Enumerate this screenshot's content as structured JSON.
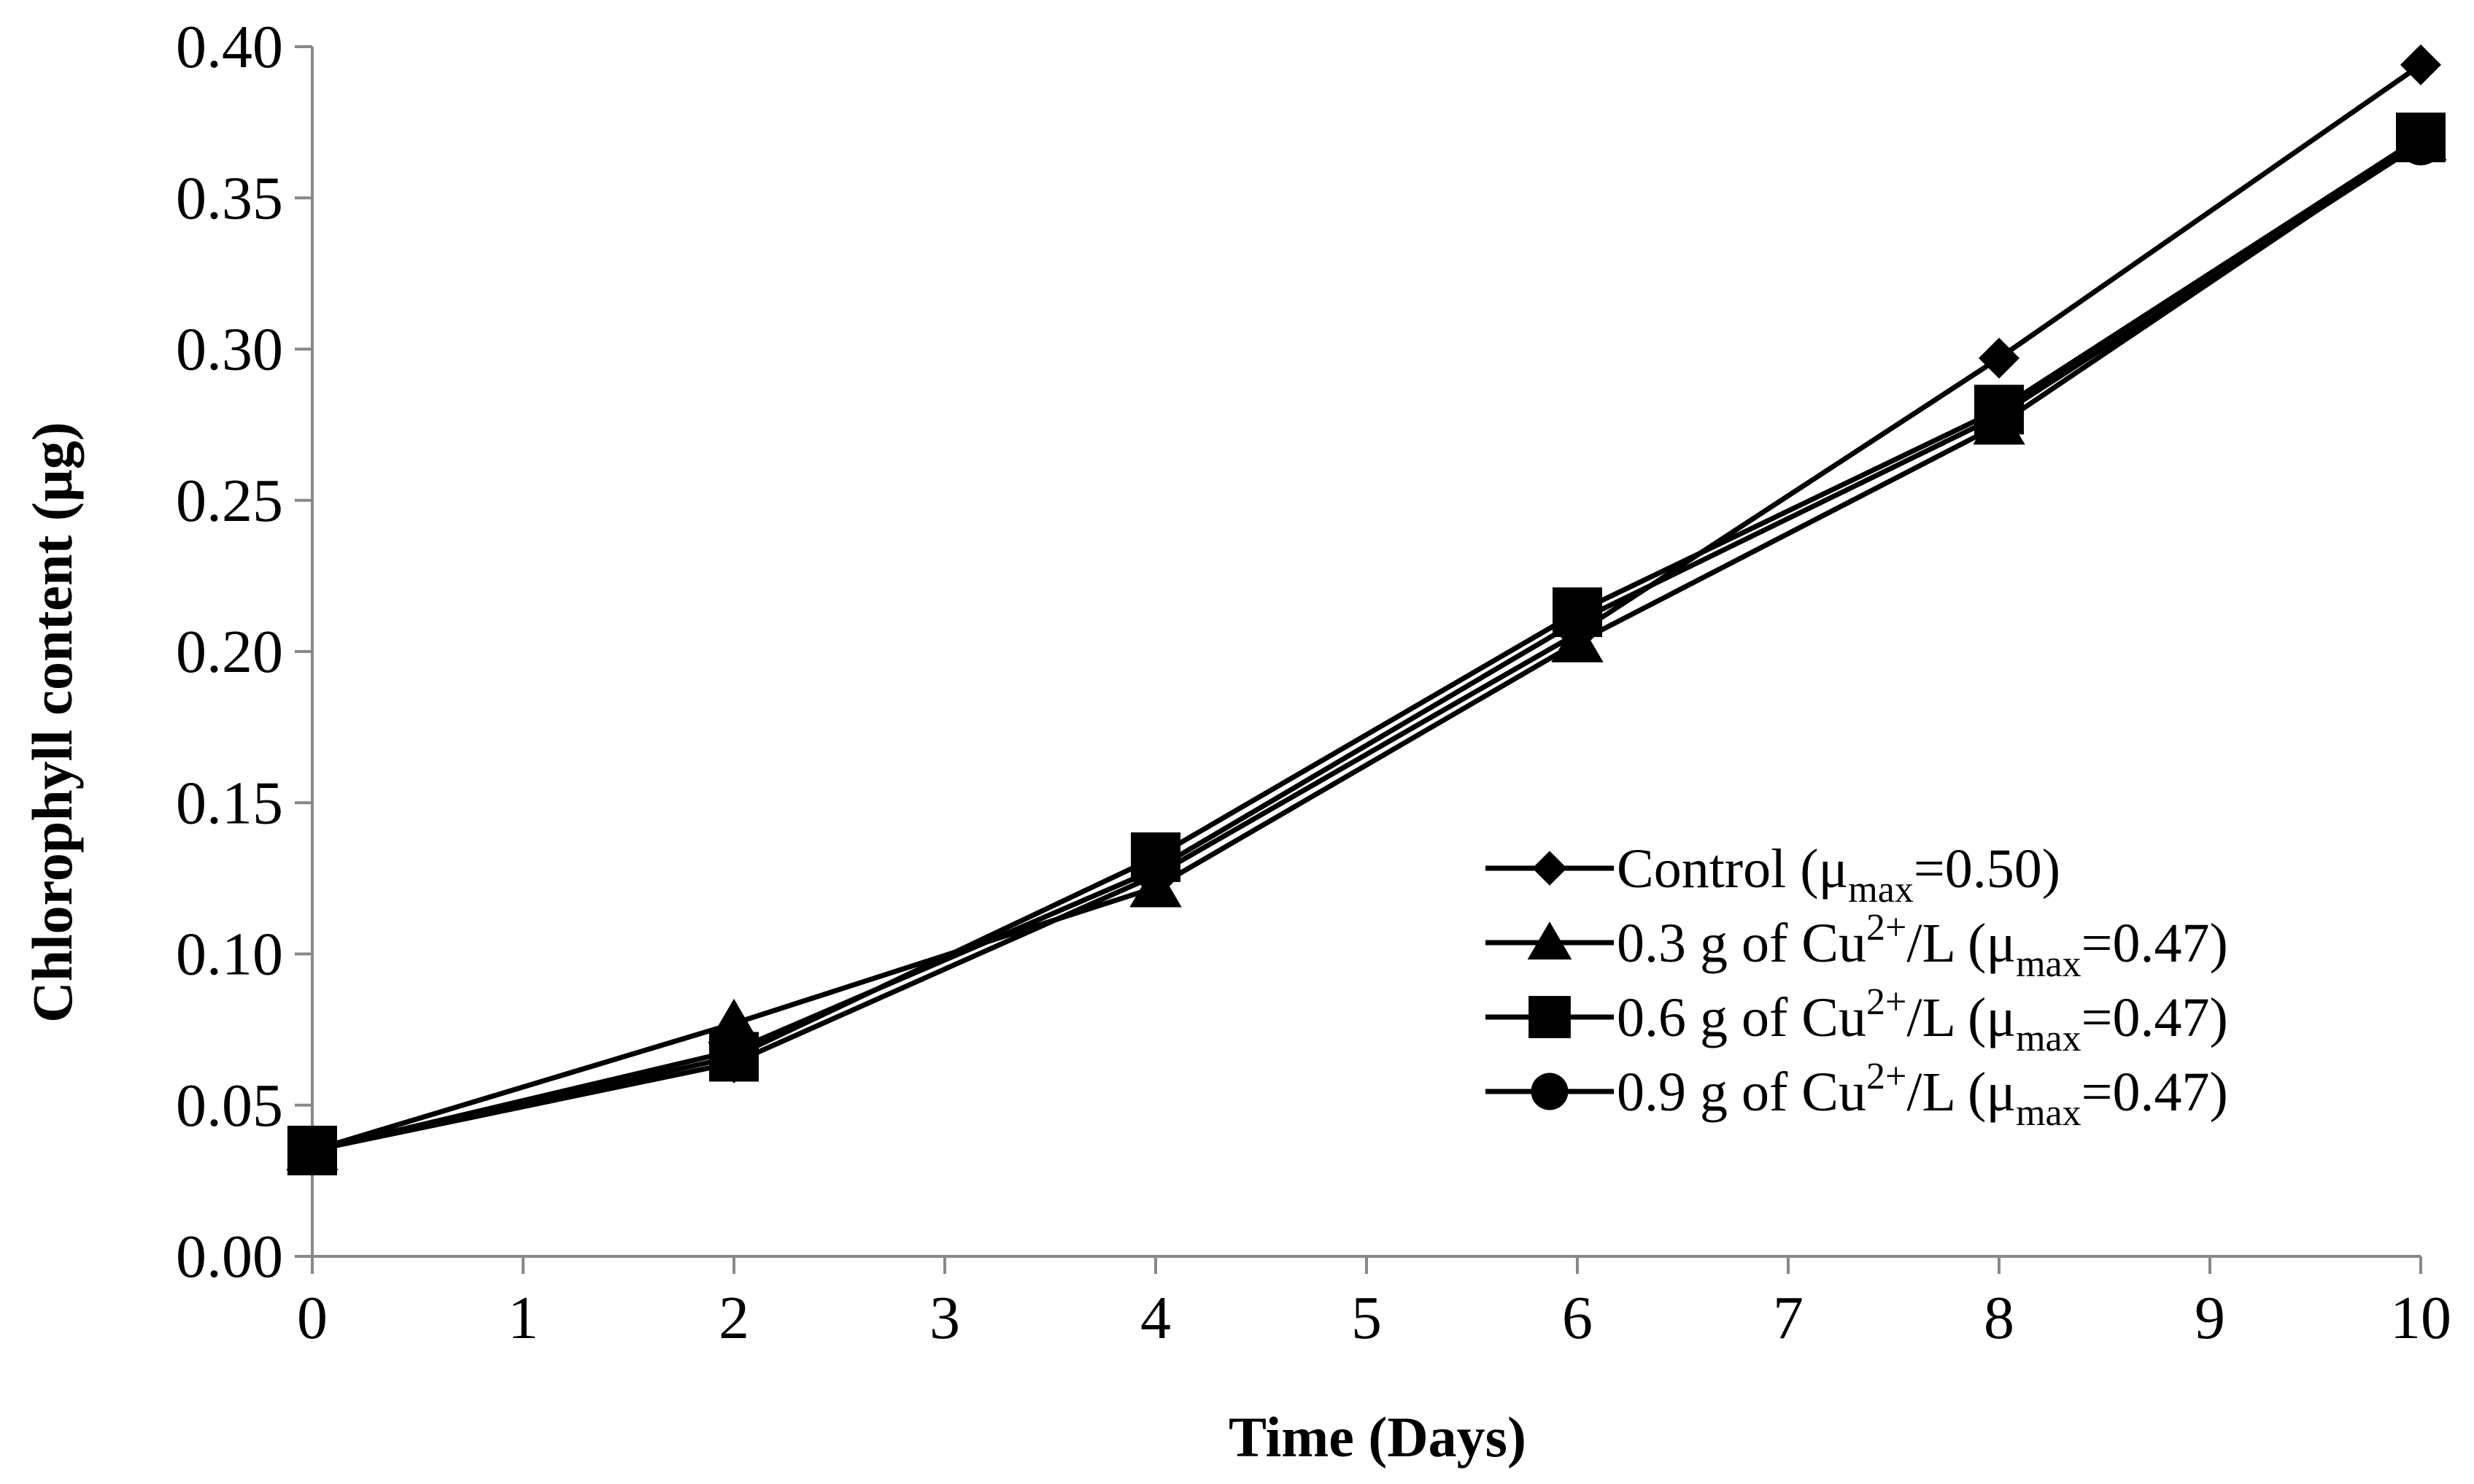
{
  "chart_data": {
    "type": "line",
    "title": "",
    "xlabel": "Time (Days)",
    "ylabel": "Chlorophyll content (µg)",
    "xlim": [
      0,
      10
    ],
    "ylim": [
      0,
      0.4
    ],
    "x_ticks": [
      "0",
      "1",
      "2",
      "3",
      "4",
      "5",
      "6",
      "7",
      "8",
      "9",
      "10"
    ],
    "y_ticks": [
      "0.00",
      "0.05",
      "0.10",
      "0.15",
      "0.20",
      "0.25",
      "0.30",
      "0.35",
      "0.40"
    ],
    "grid": false,
    "legend_position": "lower-right",
    "colors": {
      "line": "#000000",
      "axis": "#888888"
    },
    "x": [
      0,
      2,
      4,
      6,
      8,
      10
    ],
    "series": [
      {
        "name": "Control (μmax=0.50)",
        "label_main": "Control (μ",
        "label_sub": "max",
        "label_end": "=0.50)",
        "marker": "diamond",
        "values": [
          0.035,
          0.064,
          0.126,
          0.206,
          0.297,
          0.394
        ]
      },
      {
        "name": "0.3 g of Cu2+/L (μmax=0.47)",
        "label_main": "0.3 g of Cu",
        "label_sup": "2+",
        "label_mid": "/L (μ",
        "label_sub": "max",
        "label_end": "=0.47)",
        "marker": "triangle",
        "values": [
          0.035,
          0.077,
          0.122,
          0.203,
          0.275,
          0.369
        ]
      },
      {
        "name": "0.6 g of Cu2+/L (μmax=0.47)",
        "label_main": "0.6 g of Cu",
        "label_sup": "2+",
        "label_mid": "/L (μ",
        "label_sub": "max",
        "label_end": "=0.47)",
        "marker": "square",
        "values": [
          0.035,
          0.066,
          0.132,
          0.213,
          0.28,
          0.37
        ]
      },
      {
        "name": "0.9 g of Cu2+/L (μmax=0.47)",
        "label_main": "0.9 g of Cu",
        "label_sup": "2+",
        "label_mid": "/L (μ",
        "label_sub": "max",
        "label_end": "=0.47)",
        "marker": "circle",
        "values": [
          0.035,
          0.068,
          0.128,
          0.21,
          0.278,
          0.368
        ]
      }
    ]
  }
}
